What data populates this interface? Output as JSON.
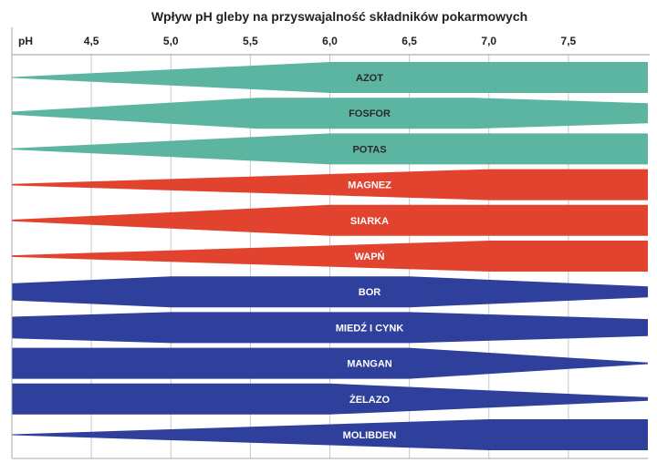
{
  "chart_data": {
    "type": "area",
    "title": "Wpływ pH gleby na przyswajalność składników pokarmowych",
    "xlabel": "pH",
    "xlim": [
      4.0,
      8.0
    ],
    "x_ticks": [
      "4,5",
      "5,0",
      "5,5",
      "6,0",
      "6,5",
      "7,0",
      "7,5"
    ],
    "x_tick_values": [
      4.5,
      5.0,
      5.5,
      6.0,
      6.5,
      7.0,
      7.5
    ],
    "grid": true,
    "value_meaning": "relative availability (band width, 0-1) at given pH",
    "colors": {
      "teal": "#5bb5a1",
      "red": "#e2432f",
      "blue": "#2f3f9c"
    },
    "series": [
      {
        "name": "AZOT",
        "color": "#5bb5a1",
        "label_color": "#2a2a2a",
        "points": [
          [
            4.0,
            0.03
          ],
          [
            6.0,
            1
          ],
          [
            8.0,
            1
          ]
        ]
      },
      {
        "name": "FOSFOR",
        "color": "#5bb5a1",
        "label_color": "#2a2a2a",
        "points": [
          [
            4.0,
            0.1
          ],
          [
            5.55,
            1
          ],
          [
            6.9,
            1
          ],
          [
            8.0,
            0.65
          ]
        ]
      },
      {
        "name": "POTAS",
        "color": "#5bb5a1",
        "label_color": "#2a2a2a",
        "points": [
          [
            4.0,
            0.04
          ],
          [
            6.0,
            1
          ],
          [
            8.0,
            1
          ]
        ]
      },
      {
        "name": "MAGNEZ",
        "color": "#e2432f",
        "label_color": "#ffffff",
        "points": [
          [
            4.0,
            0.05
          ],
          [
            7.0,
            1
          ],
          [
            8.0,
            1
          ]
        ]
      },
      {
        "name": "SIARKA",
        "color": "#e2432f",
        "label_color": "#ffffff",
        "points": [
          [
            4.0,
            0.05
          ],
          [
            6.0,
            1
          ],
          [
            8.0,
            1
          ]
        ]
      },
      {
        "name": "WAPŃ",
        "color": "#e2432f",
        "label_color": "#ffffff",
        "points": [
          [
            4.0,
            0.05
          ],
          [
            7.0,
            1
          ],
          [
            8.0,
            1
          ]
        ]
      },
      {
        "name": "BOR",
        "color": "#2f3f9c",
        "label_color": "#ffffff",
        "points": [
          [
            4.0,
            0.55
          ],
          [
            5.0,
            1
          ],
          [
            6.5,
            1
          ],
          [
            8.0,
            0.35
          ]
        ]
      },
      {
        "name": "MIEDŹ I CYNK",
        "color": "#2f3f9c",
        "label_color": "#ffffff",
        "points": [
          [
            4.0,
            0.7
          ],
          [
            5.0,
            1
          ],
          [
            6.5,
            1
          ],
          [
            8.0,
            0.55
          ]
        ]
      },
      {
        "name": "MANGAN",
        "color": "#2f3f9c",
        "label_color": "#ffffff",
        "points": [
          [
            4.0,
            1
          ],
          [
            6.5,
            1
          ],
          [
            8.0,
            0.05
          ]
        ]
      },
      {
        "name": "ŻELAZO",
        "color": "#2f3f9c",
        "label_color": "#ffffff",
        "points": [
          [
            4.0,
            1
          ],
          [
            6.0,
            1
          ],
          [
            8.0,
            0.12
          ]
        ]
      },
      {
        "name": "MOLIBDEN",
        "color": "#2f3f9c",
        "label_color": "#ffffff",
        "points": [
          [
            4.0,
            0.03
          ],
          [
            7.0,
            1
          ],
          [
            8.0,
            1
          ]
        ]
      }
    ]
  }
}
